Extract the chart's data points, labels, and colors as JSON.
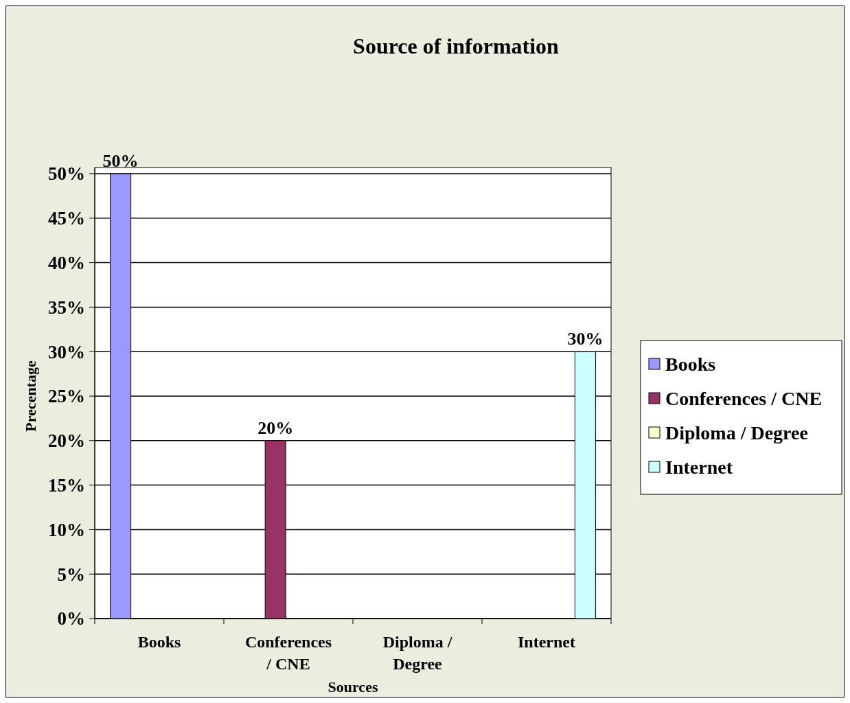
{
  "chart_data": {
    "type": "bar",
    "title": "Source of information",
    "xlabel": "Sources",
    "ylabel": "Precentage",
    "categories": [
      "Books",
      "Conferences / CNE",
      "Diploma / Degree",
      "Internet"
    ],
    "series": [
      {
        "name": "Books",
        "color": "#9999ff",
        "values": [
          50,
          null,
          null,
          null
        ],
        "value_labels": [
          "50%",
          null,
          null,
          null
        ]
      },
      {
        "name": "Conferences / CNE",
        "color": "#993366",
        "values": [
          null,
          20,
          null,
          null
        ],
        "value_labels": [
          null,
          "20%",
          null,
          null
        ]
      },
      {
        "name": "Diploma / Degree",
        "color": "#ffffcc",
        "values": [
          null,
          null,
          0,
          null
        ],
        "value_labels": [
          null,
          null,
          null,
          null
        ]
      },
      {
        "name": "Internet",
        "color": "#ccffff",
        "values": [
          null,
          null,
          null,
          30
        ],
        "value_labels": [
          null,
          null,
          null,
          "30%"
        ]
      }
    ],
    "ylim": [
      0,
      50
    ],
    "yticks": [
      {
        "value": 0,
        "label": "0%"
      },
      {
        "value": 5,
        "label": "5%"
      },
      {
        "value": 10,
        "label": "10%"
      },
      {
        "value": 15,
        "label": "15%"
      },
      {
        "value": 20,
        "label": "20%"
      },
      {
        "value": 25,
        "label": "25%"
      },
      {
        "value": 30,
        "label": "30%"
      },
      {
        "value": 35,
        "label": "35%"
      },
      {
        "value": 40,
        "label": "40%"
      },
      {
        "value": 45,
        "label": "45%"
      },
      {
        "value": 50,
        "label": "50%"
      }
    ],
    "grid": "y",
    "legend": "right"
  }
}
